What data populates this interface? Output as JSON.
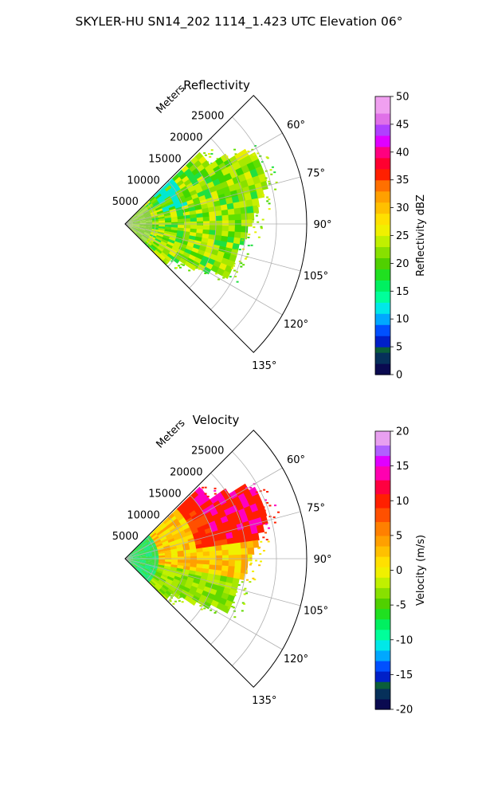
{
  "figure": {
    "title": "SKYLER-HU  SN14_202  1114_1.423 UTC Elevation 06°"
  },
  "chart_data": [
    {
      "type": "heatmap",
      "projection": "polar-sector",
      "title": "Reflectivity",
      "radial_label": "Meters",
      "radial_ticks": [
        "5000",
        "10000",
        "15000",
        "20000",
        "25000"
      ],
      "radial_tick_values": [
        5000,
        10000,
        15000,
        20000,
        25000
      ],
      "radial_max": 30000,
      "angle_ticks": [
        "60°",
        "75°",
        "90°",
        "105°",
        "120°",
        "135°"
      ],
      "angle_tick_values": [
        60,
        75,
        90,
        105,
        120,
        135
      ],
      "sector_range_deg": [
        45,
        135
      ],
      "grid": true,
      "colorbar": {
        "label": "Reflectivity dBZ",
        "range": [
          0,
          50
        ],
        "ticks": [
          "0",
          "5",
          "10",
          "15",
          "20",
          "25",
          "30",
          "35",
          "40",
          "45",
          "50"
        ],
        "tick_values": [
          0,
          5,
          10,
          15,
          20,
          25,
          30,
          35,
          40,
          45,
          50
        ]
      }
    },
    {
      "type": "heatmap",
      "projection": "polar-sector",
      "title": "Velocity",
      "radial_label": "Meters",
      "radial_ticks": [
        "5000",
        "10000",
        "15000",
        "20000",
        "25000"
      ],
      "radial_tick_values": [
        5000,
        10000,
        15000,
        20000,
        25000
      ],
      "radial_max": 30000,
      "angle_ticks": [
        "60°",
        "75°",
        "90°",
        "105°",
        "120°",
        "135°"
      ],
      "angle_tick_values": [
        60,
        75,
        90,
        105,
        120,
        135
      ],
      "sector_range_deg": [
        45,
        135
      ],
      "grid": true,
      "colorbar": {
        "label": "Velocity (m/s)",
        "range": [
          -20,
          20
        ],
        "ticks": [
          "-20",
          "-15",
          "-10",
          "-5",
          "0",
          "5",
          "10",
          "15",
          "20"
        ],
        "tick_values": [
          -20,
          -15,
          -10,
          -5,
          0,
          5,
          10,
          15,
          20
        ]
      }
    }
  ]
}
